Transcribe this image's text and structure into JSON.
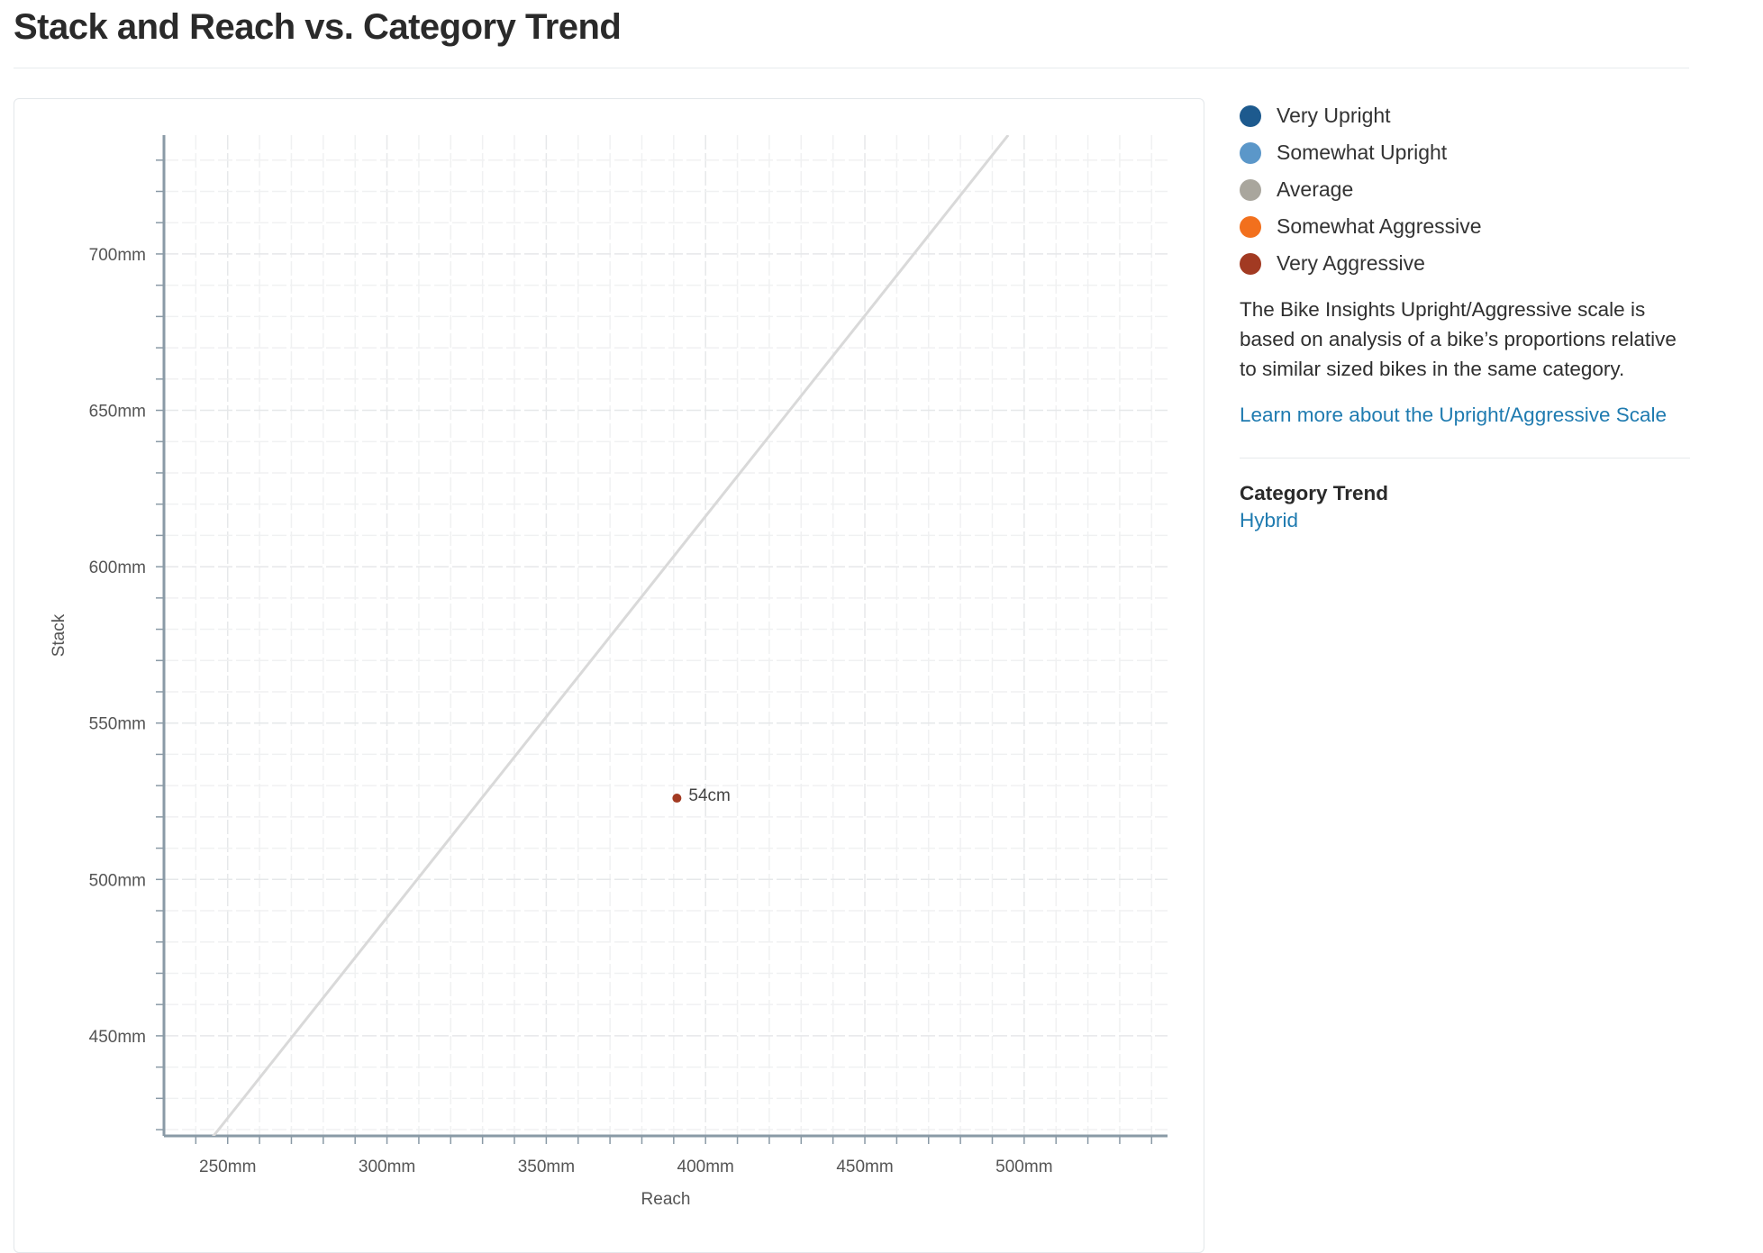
{
  "header": {
    "title": "Stack and Reach vs. Category Trend"
  },
  "legend": [
    {
      "label": "Very Upright",
      "color": "#1d5a8e"
    },
    {
      "label": "Somewhat Upright",
      "color": "#5b97c9"
    },
    {
      "label": "Average",
      "color": "#a9a69d"
    },
    {
      "label": "Somewhat Aggressive",
      "color": "#f2701d"
    },
    {
      "label": "Very Aggressive",
      "color": "#a23a22"
    }
  ],
  "description": "The Bike Insights Upright/Aggressive scale is based on analysis of a bike’s proportions relative to similar sized bikes in the same category.",
  "learn_more_link": "Learn more about the Upright/Aggressive Scale",
  "category_trend": {
    "heading": "Category Trend",
    "value": "Hybrid"
  },
  "chart_data": {
    "type": "scatter",
    "xlabel": "Reach",
    "ylabel": "Stack",
    "xlim": [
      230,
      545
    ],
    "ylim": [
      418,
      738
    ],
    "x_ticks": [
      250,
      300,
      350,
      400,
      450,
      500
    ],
    "x_tick_labels": [
      "250mm",
      "300mm",
      "350mm",
      "400mm",
      "450mm",
      "500mm"
    ],
    "y_ticks": [
      450,
      500,
      550,
      600,
      650,
      700
    ],
    "y_tick_labels": [
      "450mm",
      "500mm",
      "550mm",
      "600mm",
      "650mm",
      "700mm"
    ],
    "grid": true,
    "points": [
      {
        "label": "54cm",
        "x": 391,
        "y": 526,
        "color": "#a23a22"
      }
    ],
    "trend_line": {
      "from": [
        244,
        416
      ],
      "to": [
        495,
        738
      ],
      "color": "#d9d9d9"
    }
  }
}
